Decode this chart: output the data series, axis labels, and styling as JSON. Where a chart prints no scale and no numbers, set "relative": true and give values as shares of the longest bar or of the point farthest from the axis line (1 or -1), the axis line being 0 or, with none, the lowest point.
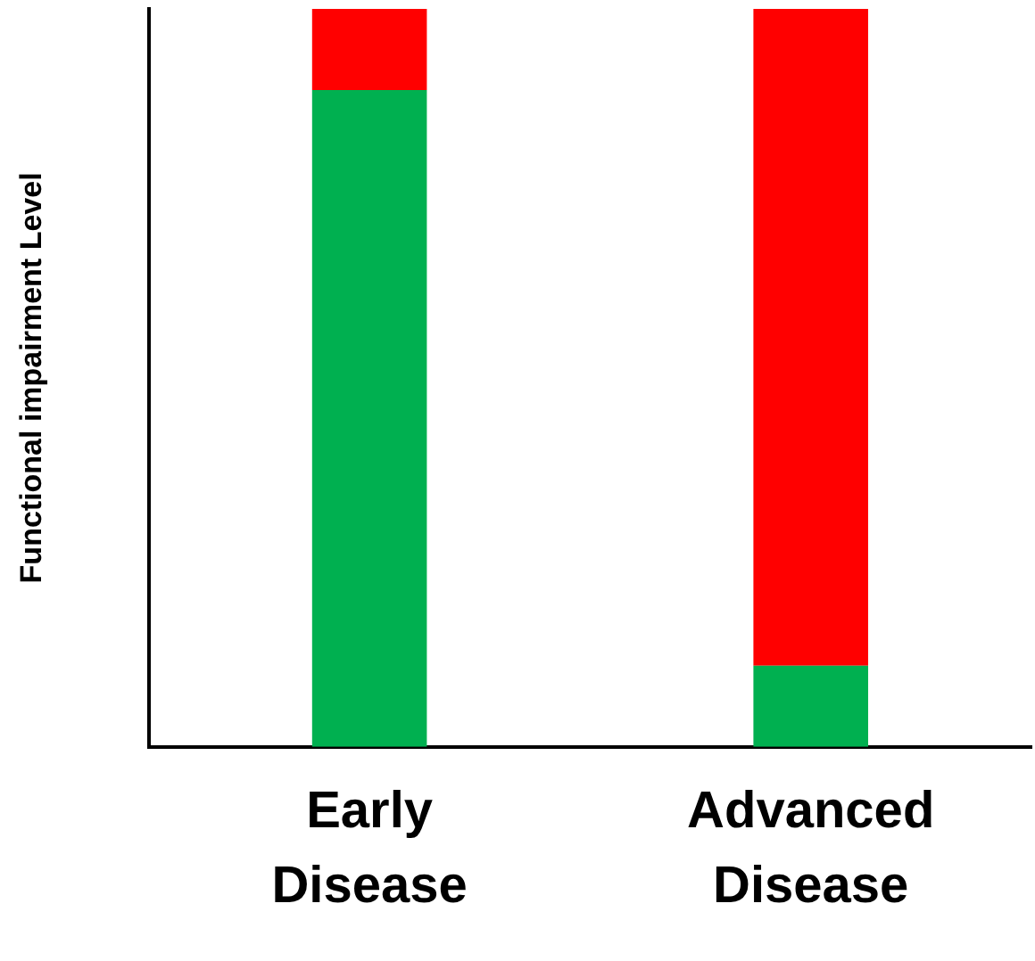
{
  "chart_data": {
    "type": "bar",
    "stacked": true,
    "relative": true,
    "ylabel": "Functional impairment Level",
    "categories": [
      "Early Disease",
      "Advanced Disease"
    ],
    "series": [
      {
        "color": "#00b050",
        "values": [
          0.89,
          0.11
        ]
      },
      {
        "color": "#ff0000",
        "values": [
          0.11,
          0.89
        ]
      }
    ],
    "grid": false,
    "legend": false
  }
}
